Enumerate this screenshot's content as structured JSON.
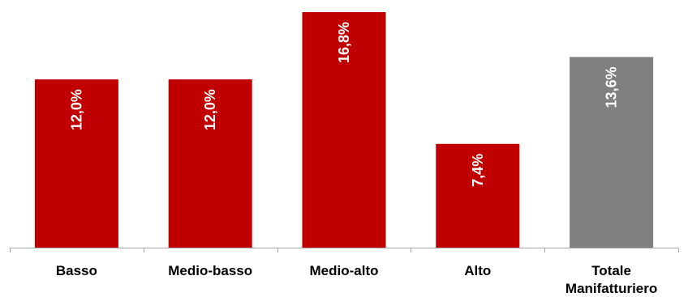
{
  "chart_data": {
    "type": "bar",
    "categories": [
      [
        "Basso"
      ],
      [
        "Medio-basso"
      ],
      [
        "Medio-alto"
      ],
      [
        "Alto"
      ],
      [
        "Totale",
        "Manifatturiero"
      ]
    ],
    "values": [
      12.0,
      12.0,
      16.8,
      7.4,
      13.6
    ],
    "data_labels": [
      "12,0%",
      "12,0%",
      "16,8%",
      "7,4%",
      "13,6%"
    ],
    "bar_colors": [
      "#c00000",
      "#c00000",
      "#c00000",
      "#c00000",
      "#808080"
    ],
    "axis_color": "#a6a6a6",
    "title": "",
    "xlabel": "",
    "ylabel": "",
    "ylim": [
      0,
      17
    ],
    "grid": false,
    "legend": "none"
  }
}
